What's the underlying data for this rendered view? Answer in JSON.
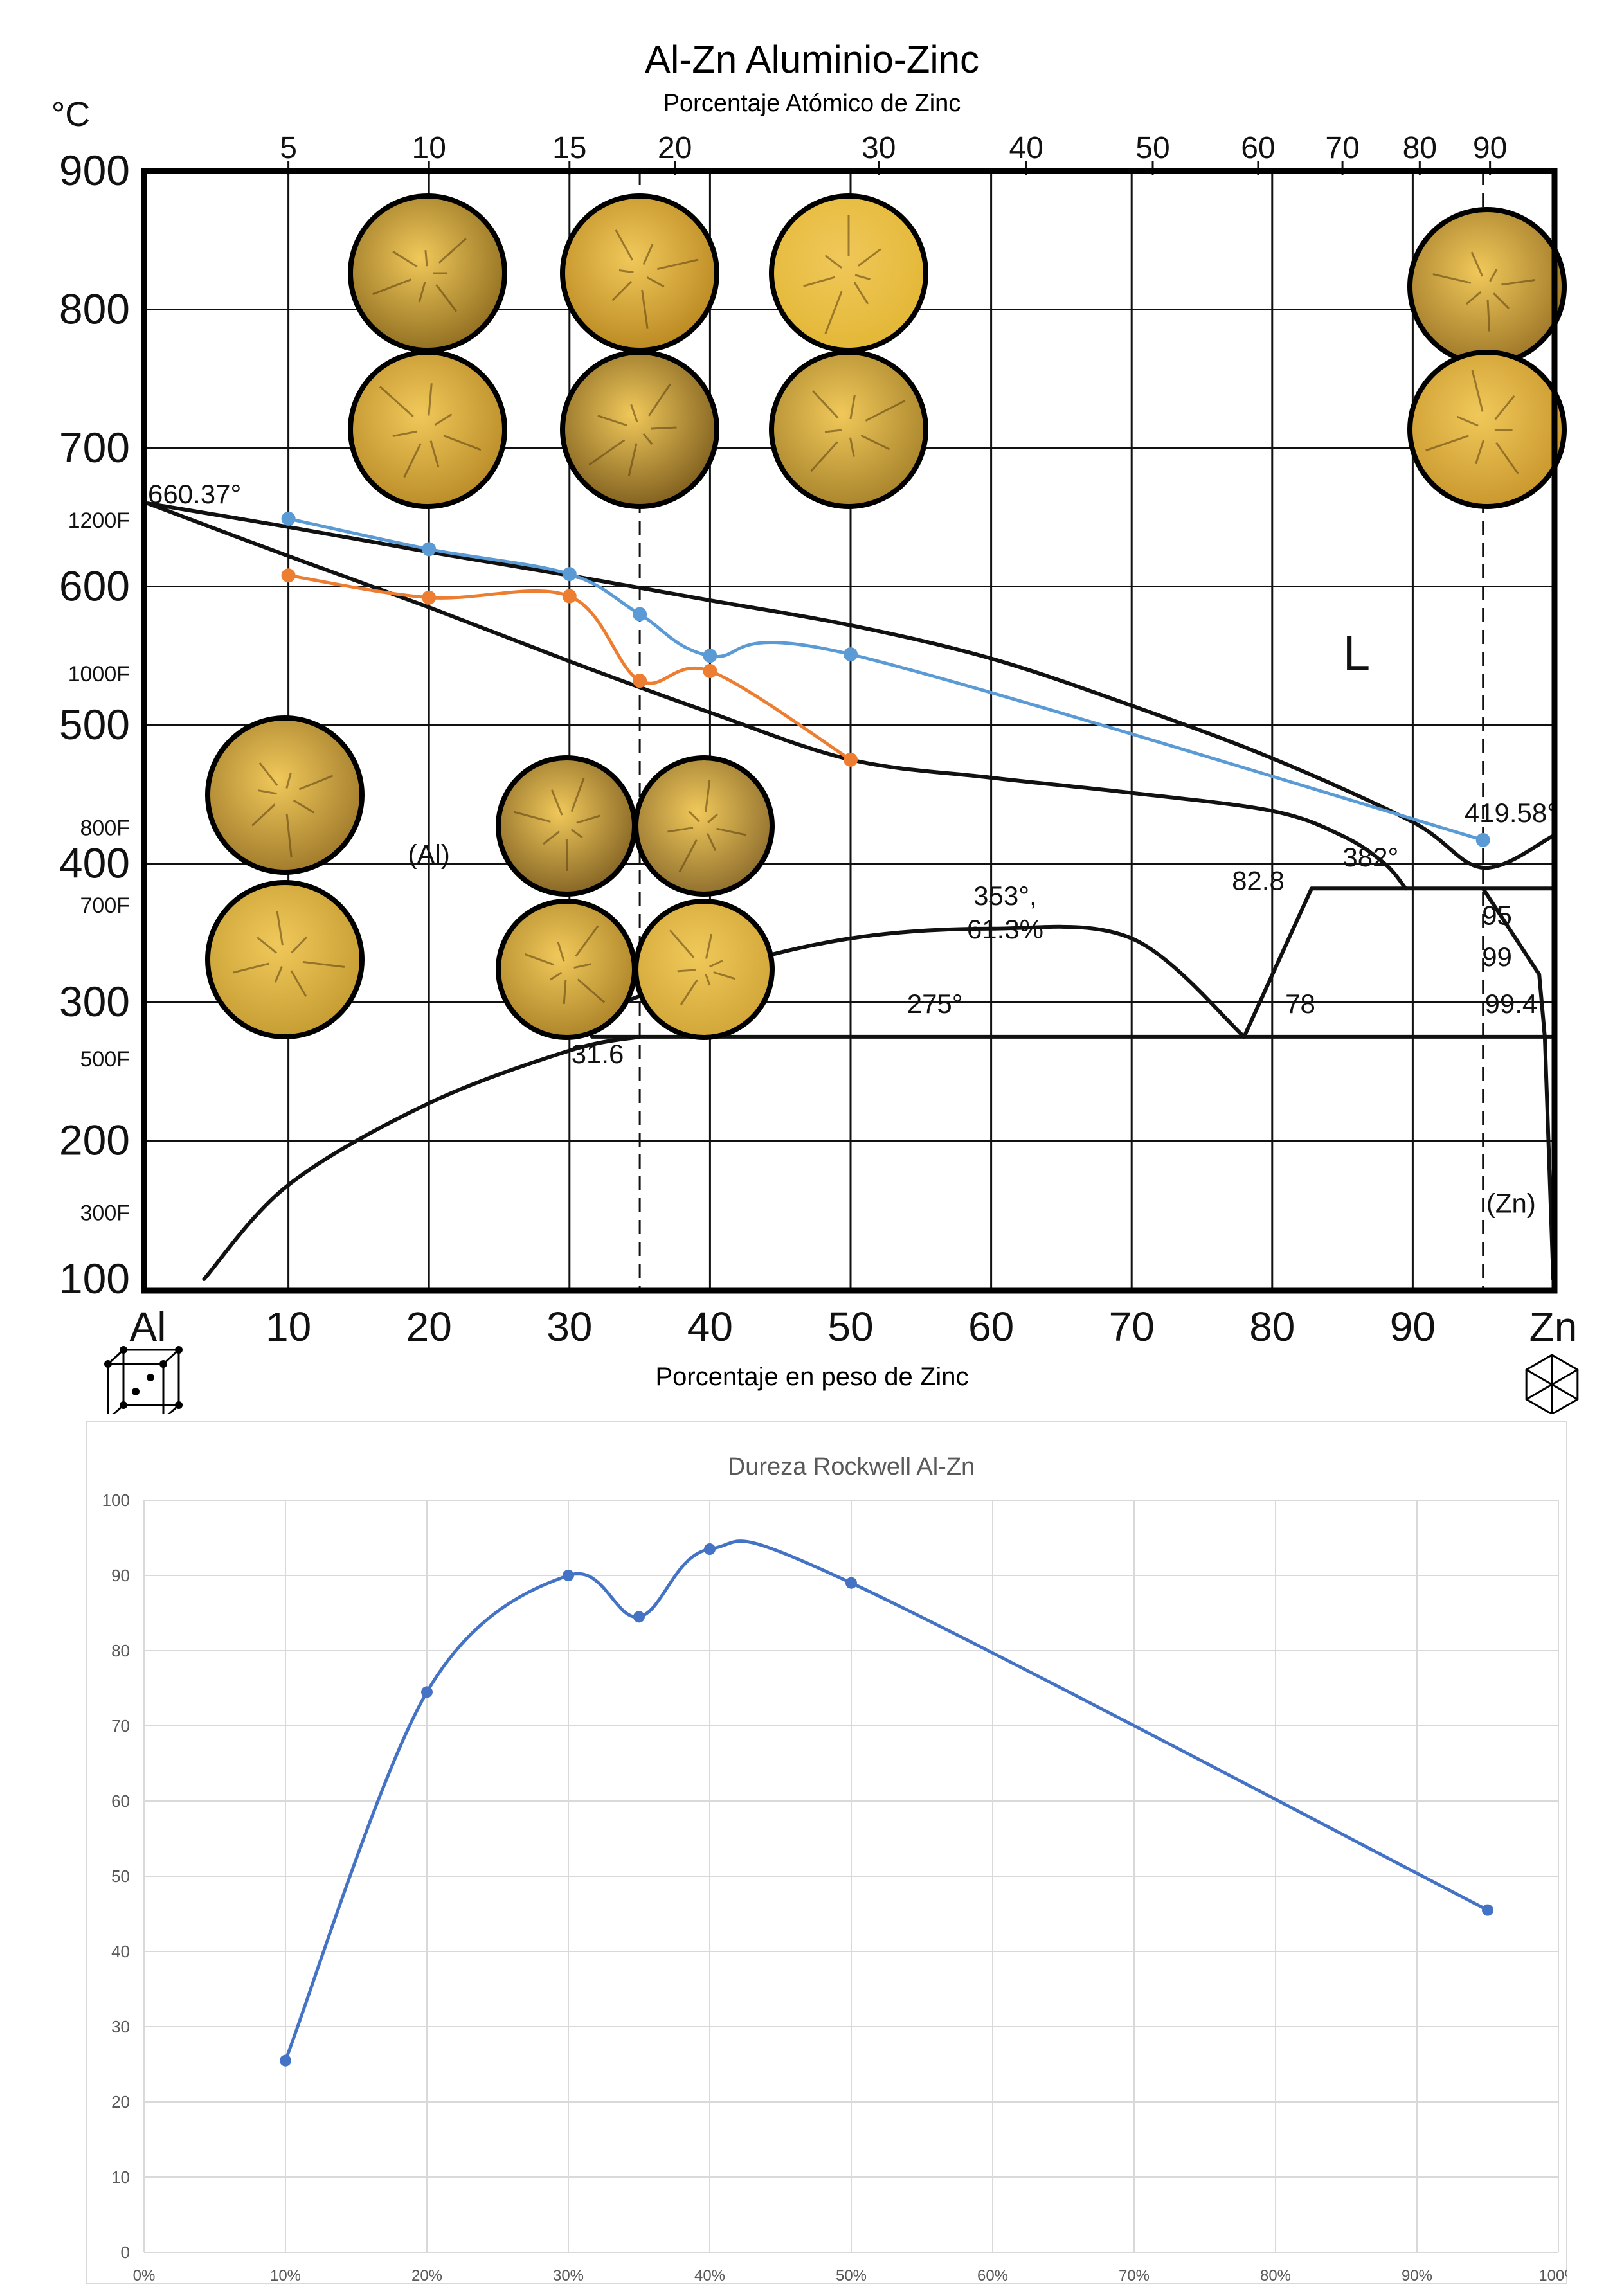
{
  "header": {
    "title": "Al-Zn Aluminio-Zinc",
    "subtitle": "Porcentaje Atómico de Zinc",
    "bottom_axis_title": "Porcentaje en peso de Zinc"
  },
  "colors": {
    "liquidus_blue": "#5b9bd5",
    "solidus_orange": "#ed7d31",
    "hardness_line": "#4472c4",
    "grid_light": "#d9d9d9",
    "micrograph_gold": "#c9a33a"
  },
  "chart_data": [
    {
      "type": "line",
      "name": "phase-diagram",
      "title": "Al-Zn Aluminio-Zinc",
      "subtitle": "Porcentaje Atómico de Zinc",
      "xlabel": "Porcentaje en peso de Zinc",
      "ylabel": "°C",
      "xlim": [
        0,
        100
      ],
      "ylim": [
        100,
        900
      ],
      "x_ticks_weight": [
        {
          "v": 0,
          "label": "Al"
        },
        {
          "v": 10,
          "label": "10"
        },
        {
          "v": 20,
          "label": "20"
        },
        {
          "v": 30,
          "label": "30"
        },
        {
          "v": 40,
          "label": "40"
        },
        {
          "v": 50,
          "label": "50"
        },
        {
          "v": 60,
          "label": "60"
        },
        {
          "v": 70,
          "label": "70"
        },
        {
          "v": 80,
          "label": "80"
        },
        {
          "v": 90,
          "label": "90"
        },
        {
          "v": 100,
          "label": "Zn"
        }
      ],
      "x_ticks_atomic": [
        {
          "wt": 10,
          "label": "5"
        },
        {
          "wt": 20,
          "label": "10"
        },
        {
          "wt": 30,
          "label": "15"
        },
        {
          "wt": 37.5,
          "label": "20"
        },
        {
          "wt": 52,
          "label": "30"
        },
        {
          "wt": 62.5,
          "label": "40"
        },
        {
          "wt": 71.5,
          "label": "50"
        },
        {
          "wt": 79,
          "label": "60"
        },
        {
          "wt": 85,
          "label": "70"
        },
        {
          "wt": 90.5,
          "label": "80"
        },
        {
          "wt": 95.5,
          "label": "90"
        }
      ],
      "y_ticks_c": [
        900,
        800,
        700,
        600,
        500,
        400,
        300,
        200,
        100
      ],
      "y_ticks_f": [
        {
          "c": 649,
          "label": "1200F"
        },
        {
          "c": 538,
          "label": "1000F"
        },
        {
          "c": 427,
          "label": "800F"
        },
        {
          "c": 371,
          "label": "700F"
        },
        {
          "c": 260,
          "label": "500F"
        },
        {
          "c": 149,
          "label": "300F"
        }
      ],
      "series": [
        {
          "name": "",
          "color": "#5b9bd5",
          "x": [
            10,
            20,
            30,
            35,
            40,
            50,
            95
          ],
          "y": [
            649,
            627,
            609,
            580,
            550,
            551,
            417
          ]
        },
        {
          "name": "",
          "color": "#ed7d31",
          "x": [
            10,
            20,
            30,
            35,
            40,
            50
          ],
          "y": [
            608,
            592,
            593,
            532,
            539,
            475
          ]
        }
      ],
      "phase_lines": {
        "liquidus": [
          [
            0,
            660
          ],
          [
            10,
            643
          ],
          [
            20,
            625
          ],
          [
            30,
            608
          ],
          [
            40,
            590
          ],
          [
            50,
            572
          ],
          [
            60,
            548
          ],
          [
            70,
            514
          ],
          [
            80,
            476
          ],
          [
            90,
            430
          ],
          [
            95,
            397
          ],
          [
            100,
            420
          ]
        ],
        "solidus_al": [
          [
            0,
            660
          ],
          [
            10,
            622
          ],
          [
            20,
            585
          ],
          [
            30,
            546
          ],
          [
            40,
            509
          ],
          [
            50,
            475
          ],
          [
            60,
            462
          ],
          [
            70,
            451
          ],
          [
            80,
            438
          ],
          [
            85,
            420
          ],
          [
            88,
            400
          ],
          [
            89.5,
            382
          ]
        ],
        "miscibility_gap": [
          [
            30,
            285
          ],
          [
            40,
            322
          ],
          [
            50,
            346
          ],
          [
            60,
            353
          ],
          [
            70,
            346
          ],
          [
            78,
            275
          ]
        ],
        "solvus": [
          [
            4,
            100
          ],
          [
            10,
            168
          ],
          [
            20,
            227
          ],
          [
            30,
            265
          ],
          [
            35,
            275
          ]
        ],
        "eutectoid_line": [
          [
            31.6,
            275
          ],
          [
            100,
            275
          ]
        ],
        "eutectic_line": [
          [
            82.8,
            382
          ],
          [
            100,
            382
          ]
        ],
        "phase_line_78": [
          [
            78,
            275
          ],
          [
            82.8,
            382
          ]
        ],
        "zn_side": [
          [
            95,
            382
          ],
          [
            99,
            320
          ],
          [
            99.4,
            275
          ],
          [
            100,
            100
          ]
        ]
      },
      "annotations": [
        {
          "text": "660.37°",
          "x": 0,
          "y": 660
        },
        {
          "text": "L",
          "x": 86,
          "y": 540
        },
        {
          "text": "(Al)",
          "x": 20,
          "y": 400
        },
        {
          "text": "353°,",
          "x": 61,
          "y": 370
        },
        {
          "text": "61.3%",
          "x": 61,
          "y": 346
        },
        {
          "text": "382°",
          "x": 87,
          "y": 398
        },
        {
          "text": "82.8",
          "x": 79,
          "y": 381
        },
        {
          "text": "419.58°",
          "x": 97,
          "y": 430
        },
        {
          "text": "95",
          "x": 96,
          "y": 356
        },
        {
          "text": "99",
          "x": 96,
          "y": 326
        },
        {
          "text": "99.4",
          "x": 97,
          "y": 292
        },
        {
          "text": "275°",
          "x": 56,
          "y": 292
        },
        {
          "text": "78",
          "x": 82,
          "y": 292
        },
        {
          "text": "31.6",
          "x": 32,
          "y": 256
        },
        {
          "text": "(Zn)",
          "x": 97,
          "y": 148
        }
      ]
    },
    {
      "type": "line",
      "name": "hardness",
      "title": "Dureza Rockwell Al-Zn",
      "xlabel": "",
      "ylabel": "",
      "xlim": [
        0,
        100
      ],
      "ylim": [
        0,
        100
      ],
      "x_ticks": [
        "0%",
        "10%",
        "20%",
        "30%",
        "40%",
        "50%",
        "60%",
        "70%",
        "80%",
        "90%",
        "100%"
      ],
      "y_ticks": [
        0,
        10,
        20,
        30,
        40,
        50,
        60,
        70,
        80,
        90,
        100
      ],
      "grid": true,
      "series": [
        {
          "name": "",
          "color": "#4472c4",
          "x": [
            10,
            20,
            30,
            35,
            40,
            50,
            95
          ],
          "y": [
            25.5,
            74.5,
            90,
            84.5,
            93.5,
            89,
            45.5
          ]
        }
      ]
    }
  ],
  "micrographs": [
    {
      "id": "m1",
      "tone": "#8c6a1e"
    },
    {
      "id": "m2",
      "tone": "#b8861f"
    },
    {
      "id": "m3",
      "tone": "#e2b634"
    },
    {
      "id": "m4",
      "tone": "#9a7326"
    },
    {
      "id": "m5",
      "tone": "#b78926"
    },
    {
      "id": "m6",
      "tone": "#7a5a1c"
    },
    {
      "id": "m7",
      "tone": "#a48029"
    },
    {
      "id": "m8",
      "tone": "#c7952b"
    },
    {
      "id": "m9",
      "tone": "#9c7629"
    },
    {
      "id": "m10",
      "tone": "#c39a30"
    },
    {
      "id": "m11",
      "tone": "#7f5f22"
    },
    {
      "id": "m12",
      "tone": "#8a6a2c"
    },
    {
      "id": "m13",
      "tone": "#a98127"
    },
    {
      "id": "m14",
      "tone": "#d0a436"
    },
    {
      "id": "m15",
      "tone": "#c8962d"
    },
    {
      "id": "m16",
      "tone": "#d4a635"
    }
  ]
}
